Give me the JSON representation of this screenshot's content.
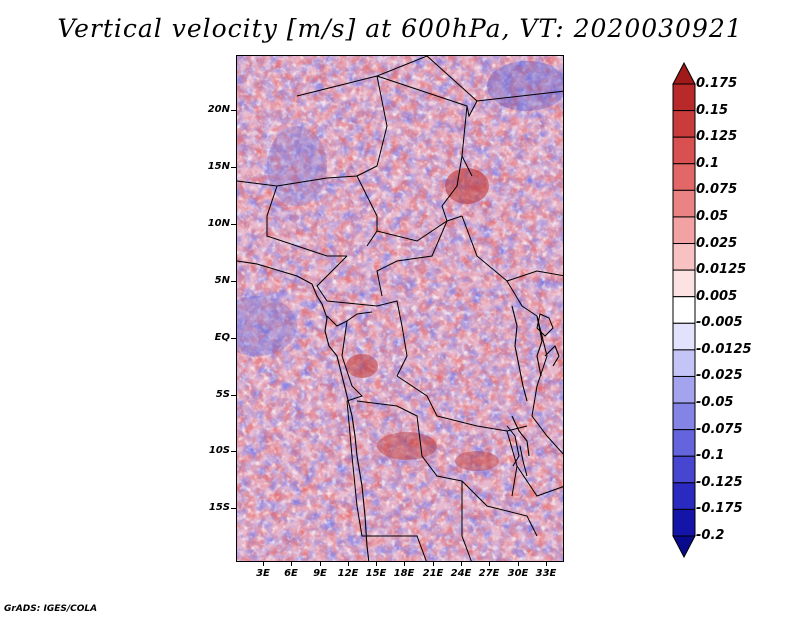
{
  "title": "Vertical velocity [m/s] at 600hPa, VT: 2020030921",
  "footer": "GrADS: IGES/COLA",
  "map": {
    "lat_labels": [
      "20N",
      "15N",
      "10N",
      "5N",
      "EQ",
      "5S",
      "10S",
      "15S"
    ],
    "lon_labels": [
      "3E",
      "6E",
      "9E",
      "12E",
      "15E",
      "18E",
      "21E",
      "24E",
      "27E",
      "30E",
      "33E"
    ]
  },
  "colorbar": {
    "labels": [
      "0.175",
      "0.15",
      "0.125",
      "0.1",
      "0.075",
      "0.05",
      "0.025",
      "0.0125",
      "0.005",
      "-0.005",
      "-0.0125",
      "-0.025",
      "-0.05",
      "-0.075",
      "-0.1",
      "-0.125",
      "-0.175",
      "-0.2"
    ],
    "colors": [
      "#a01a1a",
      "#b82a2a",
      "#c83c3c",
      "#d85050",
      "#e26868",
      "#ea8484",
      "#f2a2a2",
      "#f8c2c2",
      "#fce2e2",
      "#ffffff",
      "#e2e2fc",
      "#c4c4f6",
      "#a4a4ee",
      "#8484e6",
      "#6464dc",
      "#4646d0",
      "#2a2ac0",
      "#1414a8",
      "#0a0a8c"
    ]
  }
}
